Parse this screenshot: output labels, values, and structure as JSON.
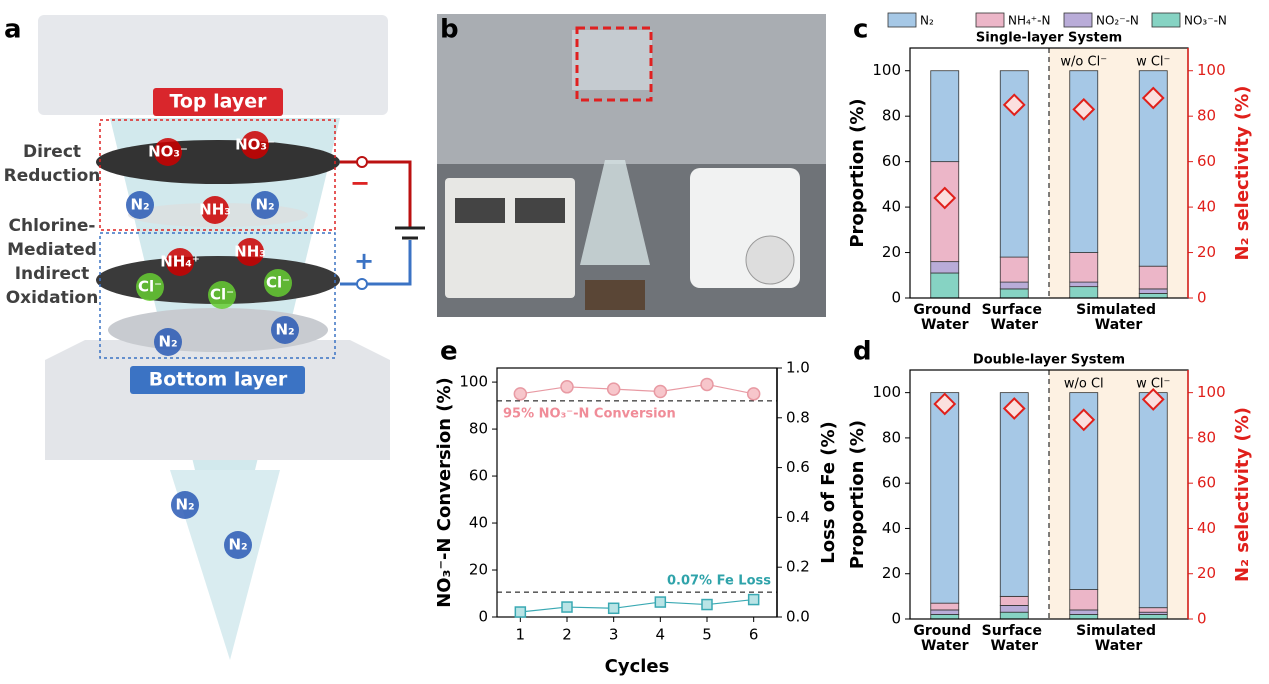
{
  "panel_labels": [
    "a",
    "b",
    "c",
    "d",
    "e"
  ],
  "diagram": {
    "layers": [
      "Top layer",
      "Bottom layer"
    ],
    "sections": [
      [
        "Direct",
        "Reduction"
      ],
      [
        "Chlorine-",
        "Mediated",
        "Indirect",
        "Oxidation"
      ]
    ],
    "polarity": [
      "−",
      "+"
    ],
    "species": [
      "NO₃⁻",
      "NO₃⁻",
      "N₂",
      "NH₃",
      "N₂",
      "NH₄⁺",
      "NH₃",
      "Cl⁻",
      "Cl⁻",
      "Cl⁻",
      "N₂",
      "N₂",
      "N₂",
      "N₂"
    ]
  },
  "chart_data": [
    {
      "type": "stacked_bar",
      "title": "Single-layer System",
      "categories": [
        "Ground Water",
        "Surface Water",
        null,
        null
      ],
      "group_label": "Simulated Water",
      "annotations": [
        "w/o Cl⁻",
        "w Cl⁻"
      ],
      "series": [
        {
          "name": "N₂",
          "color": "#a6c8e6",
          "values": [
            40,
            82,
            80,
            86
          ]
        },
        {
          "name": "NH₄⁺-N",
          "color": "#ecb6c8",
          "values": [
            44,
            11,
            13,
            10
          ]
        },
        {
          "name": "NO₂⁻-N",
          "color": "#b9acd8",
          "values": [
            5,
            3,
            2,
            2
          ]
        },
        {
          "name": "NO₃⁻-N",
          "color": "#86d3c3",
          "values": [
            11,
            4,
            5,
            2
          ]
        }
      ],
      "selectivity": [
        44,
        85,
        83,
        88
      ],
      "selectivity_color": "#e0201b",
      "ylabel": "Proportion (%)",
      "y2label": "N₂ selectivity (%)",
      "ylim": [
        0,
        110
      ],
      "yticks": [
        0,
        20,
        40,
        60,
        80,
        100
      ],
      "y2lim": [
        0,
        110
      ],
      "y2ticks": [
        0,
        20,
        40,
        60,
        80,
        100
      ]
    },
    {
      "type": "stacked_bar",
      "title": "Double-layer System",
      "categories": [
        "Ground Water",
        "Surface Water",
        null,
        null
      ],
      "group_label": "Simulated Water",
      "annotations": [
        "w/o Cl",
        "w Cl⁻"
      ],
      "series": [
        {
          "color": "#a6c8e6",
          "values": [
            93,
            90,
            87,
            95
          ]
        },
        {
          "color": "#ecb6c8",
          "values": [
            3,
            4,
            9,
            2
          ]
        },
        {
          "color": "#b9acd8",
          "values": [
            2,
            3,
            2,
            1
          ]
        },
        {
          "color": "#86d3c3",
          "values": [
            2,
            3,
            2,
            2
          ]
        }
      ],
      "selectivity": [
        95,
        93,
        88,
        97
      ],
      "selectivity_color": "#e0201b",
      "ylabel": "Proportion (%)",
      "y2label": "N₂ selectivity (%)",
      "ylim": [
        0,
        110
      ],
      "yticks": [
        0,
        20,
        40,
        60,
        80,
        100
      ],
      "y2lim": [
        0,
        110
      ],
      "y2ticks": [
        0,
        20,
        40,
        60,
        80,
        100
      ]
    },
    {
      "type": "line",
      "x": [
        1,
        2,
        3,
        4,
        5,
        6
      ],
      "xlim": [
        0.5,
        6.5
      ],
      "xticks": [
        1,
        2,
        3,
        4,
        5,
        6
      ],
      "xlabel": "Cycles",
      "ylabel": "NO₃⁻-N Conversion (%)",
      "y2label": "Loss of Fe (%)",
      "ylim": [
        0,
        106
      ],
      "yticks": [
        0,
        20,
        40,
        60,
        80,
        100
      ],
      "y2lim": [
        0,
        1.0
      ],
      "y2ticks": [
        {
          "value": 0,
          "label": "0.0"
        },
        0.2,
        0.4,
        0.6,
        0.8,
        {
          "value": 1,
          "label": "1.0"
        }
      ],
      "series": [
        {
          "color": "#e89aa3",
          "fill": "#f7c6cb",
          "marker": "circle",
          "values": [
            95,
            98,
            97,
            96,
            99,
            95
          ]
        },
        {
          "color": "#3aa9b3",
          "fill": "#b9e4e6",
          "marker": "square",
          "axis": "y2",
          "values": [
            0.02,
            0.04,
            0.035,
            0.06,
            0.05,
            0.07
          ]
        }
      ],
      "references": [
        {
          "value": 92,
          "label": "95% NO₃⁻-N Conversion",
          "color": "#f08c98"
        },
        {
          "value": 0.1,
          "axis": "y2",
          "label": "0.07% Fe Loss",
          "color": "#2fa3aa"
        }
      ]
    }
  ]
}
